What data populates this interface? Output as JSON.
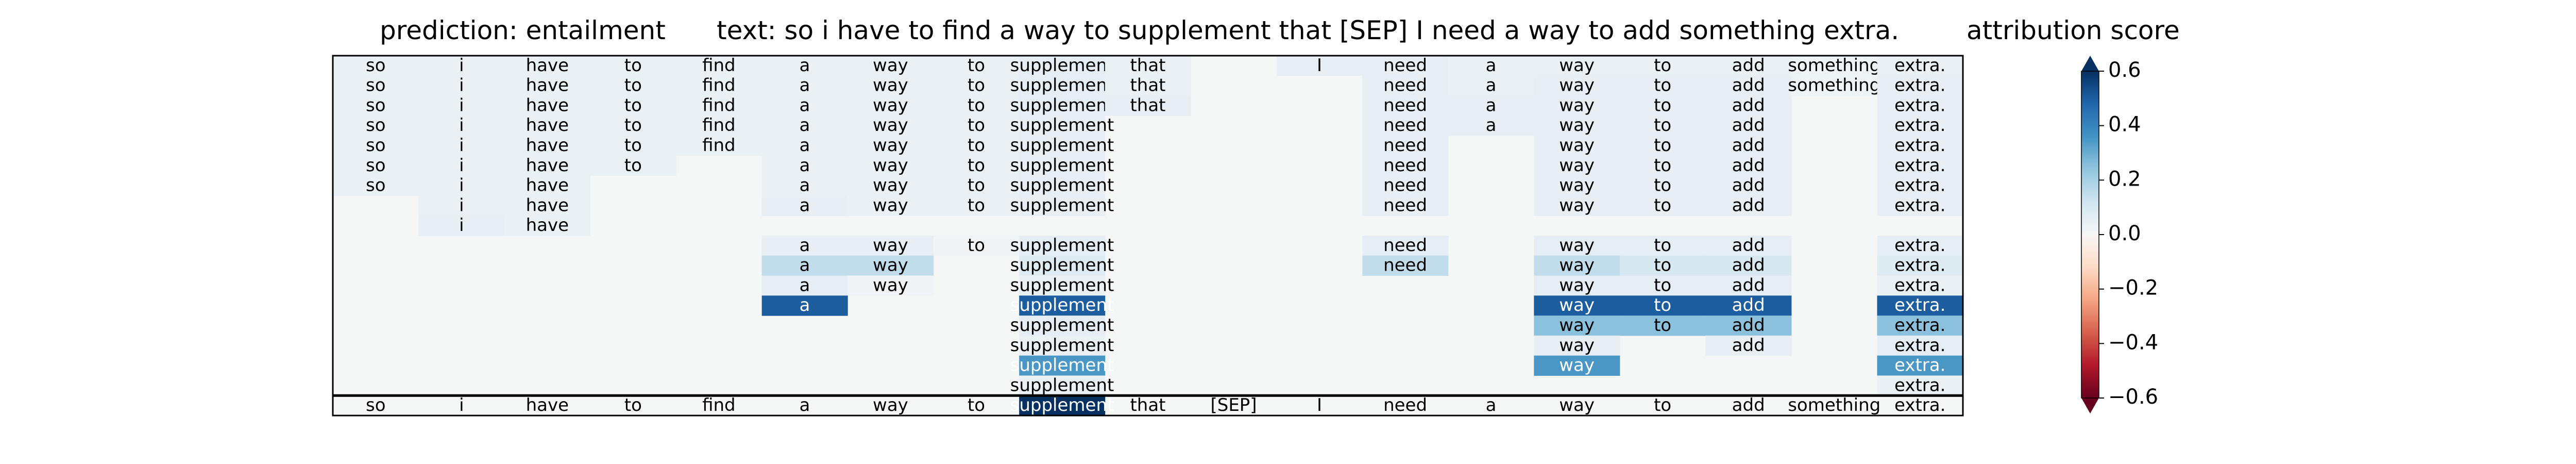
{
  "chart_data": {
    "type": "heatmap",
    "title_parts": [
      "prediction:  entailment",
      "text:  so i have to find a way to supplement that [SEP] I need a way to add something extra.",
      "attribution score"
    ],
    "tokens": [
      "so",
      "i",
      "have",
      "to",
      "find",
      "a",
      "way",
      "to",
      "supplement",
      "that",
      "[SEP]",
      "I",
      "need",
      "a",
      "way",
      "to",
      "add",
      "something",
      "extra."
    ],
    "rows": [
      {
        "words": [
          "so",
          "i",
          "have",
          "to",
          "find",
          "a",
          "way",
          "to",
          "supplement",
          "that",
          "",
          "I",
          "need",
          "a",
          "way",
          "to",
          "add",
          "something",
          "extra."
        ],
        "scores": [
          0.04,
          0.04,
          0.04,
          0.04,
          0.04,
          0.04,
          0.04,
          0.04,
          0.06,
          0.04,
          0,
          0.05,
          0.05,
          0.04,
          0.04,
          0.04,
          0.04,
          0.03,
          0.04
        ]
      },
      {
        "words": [
          "so",
          "i",
          "have",
          "to",
          "find",
          "a",
          "way",
          "to",
          "supplement",
          "that",
          "",
          "",
          "need",
          "a",
          "way",
          "to",
          "add",
          "something",
          "extra."
        ],
        "scores": [
          0.04,
          0.04,
          0.04,
          0.04,
          0.04,
          0.04,
          0.04,
          0.04,
          0.06,
          0.04,
          0,
          0,
          0.05,
          0.04,
          0.05,
          0.05,
          0.05,
          0.03,
          0.05
        ]
      },
      {
        "words": [
          "so",
          "i",
          "have",
          "to",
          "find",
          "a",
          "way",
          "to",
          "supplement",
          "that",
          "",
          "",
          "need",
          "a",
          "way",
          "to",
          "add",
          "",
          "extra."
        ],
        "scores": [
          0.04,
          0.04,
          0.04,
          0.04,
          0.04,
          0.04,
          0.04,
          0.04,
          0.06,
          0.05,
          0,
          0,
          0.05,
          0.05,
          0.05,
          0.05,
          0.05,
          0,
          0.05
        ]
      },
      {
        "words": [
          "so",
          "i",
          "have",
          "to",
          "find",
          "a",
          "way",
          "to",
          "supplement",
          "",
          "",
          "",
          "need",
          "a",
          "way",
          "to",
          "add",
          "",
          "extra."
        ],
        "scores": [
          0.04,
          0.04,
          0.04,
          0.04,
          0.04,
          0.04,
          0.04,
          0.04,
          0.05,
          0,
          0,
          0,
          0.05,
          0.05,
          0.05,
          0.05,
          0.05,
          0,
          0.05
        ]
      },
      {
        "words": [
          "so",
          "i",
          "have",
          "to",
          "find",
          "a",
          "way",
          "to",
          "supplement",
          "",
          "",
          "",
          "need",
          "",
          "way",
          "to",
          "add",
          "",
          "extra."
        ],
        "scores": [
          0.04,
          0.04,
          0.04,
          0.04,
          0.04,
          0.04,
          0.04,
          0.04,
          0.05,
          0,
          0,
          0,
          0.05,
          0,
          0.05,
          0.05,
          0.05,
          0,
          0.05
        ]
      },
      {
        "words": [
          "so",
          "i",
          "have",
          "to",
          "",
          "a",
          "way",
          "to",
          "supplement",
          "",
          "",
          "",
          "need",
          "",
          "way",
          "to",
          "add",
          "",
          "extra."
        ],
        "scores": [
          0.04,
          0.04,
          0.04,
          0.04,
          0,
          0.04,
          0.04,
          0.04,
          0.05,
          0,
          0,
          0,
          0.05,
          0,
          0.05,
          0.05,
          0.05,
          0,
          0.05
        ]
      },
      {
        "words": [
          "so",
          "i",
          "have",
          "",
          "",
          "a",
          "way",
          "to",
          "supplement",
          "",
          "",
          "",
          "need",
          "",
          "way",
          "to",
          "add",
          "",
          "extra."
        ],
        "scores": [
          0.04,
          0.04,
          0.04,
          0,
          0,
          0.04,
          0.04,
          0.04,
          0.05,
          0,
          0,
          0,
          0.05,
          0,
          0.05,
          0.05,
          0.05,
          0,
          0.05
        ]
      },
      {
        "words": [
          "",
          "i",
          "have",
          "",
          "",
          "a",
          "way",
          "to",
          "supplement",
          "",
          "",
          "",
          "need",
          "",
          "way",
          "to",
          "add",
          "",
          "extra."
        ],
        "scores": [
          0,
          0.04,
          0.04,
          0,
          0,
          0.05,
          0.04,
          0.04,
          0.05,
          0,
          0,
          0,
          0.05,
          0,
          0.05,
          0.05,
          0.05,
          0,
          0.05
        ]
      },
      {
        "words": [
          "",
          "i",
          "have",
          "",
          "",
          "",
          "",
          "",
          "",
          "",
          "",
          "",
          "",
          "",
          "",
          "",
          "",
          "",
          ""
        ],
        "scores": [
          0,
          0.05,
          0.04,
          0,
          0,
          0,
          0,
          0,
          0,
          0,
          0,
          0,
          0,
          0,
          0,
          0,
          0,
          0,
          0
        ]
      },
      {
        "words": [
          "",
          "",
          "",
          "",
          "",
          "a",
          "way",
          "to",
          "supplement",
          "",
          "",
          "",
          "need",
          "",
          "way",
          "to",
          "add",
          "",
          "extra."
        ],
        "scores": [
          0,
          0,
          0,
          0,
          0,
          0.05,
          0.05,
          0.02,
          0.06,
          0,
          0,
          0,
          0.06,
          0,
          0.06,
          0.06,
          0.06,
          0,
          0.06
        ]
      },
      {
        "words": [
          "",
          "",
          "",
          "",
          "",
          "a",
          "way",
          "",
          "supplement",
          "",
          "",
          "",
          "need",
          "",
          "way",
          "to",
          "add",
          "",
          "extra."
        ],
        "scores": [
          0,
          0,
          0,
          0,
          0,
          0.15,
          0.15,
          0,
          0.08,
          0,
          0,
          0,
          0.15,
          0,
          0.15,
          0.1,
          0.1,
          0,
          0.08
        ]
      },
      {
        "words": [
          "",
          "",
          "",
          "",
          "",
          "a",
          "way",
          "",
          "supplement",
          "",
          "",
          "",
          "",
          "",
          "way",
          "to",
          "add",
          "",
          "extra."
        ],
        "scores": [
          0,
          0,
          0,
          0,
          0,
          0.06,
          0.02,
          0,
          0.04,
          0,
          0,
          0,
          0,
          0,
          0.06,
          0.06,
          0.06,
          0,
          0.04
        ]
      },
      {
        "words": [
          "",
          "",
          "",
          "",
          "",
          "a",
          "",
          "",
          "supplement",
          "",
          "",
          "",
          "",
          "",
          "way",
          "to",
          "add",
          "",
          "extra."
        ],
        "scores": [
          0,
          0,
          0,
          0,
          0,
          0.5,
          0,
          0,
          0.5,
          0,
          0,
          0,
          0,
          0,
          0.5,
          0.5,
          0.5,
          0,
          0.5
        ]
      },
      {
        "words": [
          "",
          "",
          "",
          "",
          "",
          "",
          "",
          "",
          "supplement",
          "",
          "",
          "",
          "",
          "",
          "way",
          "to",
          "add",
          "",
          "extra."
        ],
        "scores": [
          0,
          0,
          0,
          0,
          0,
          0,
          0,
          0,
          0.06,
          0,
          0,
          0,
          0,
          0,
          0.25,
          0.25,
          0.25,
          0,
          0.25
        ]
      },
      {
        "words": [
          "",
          "",
          "",
          "",
          "",
          "",
          "",
          "",
          "supplement",
          "",
          "",
          "",
          "",
          "",
          "way",
          "",
          "add",
          "",
          "extra."
        ],
        "scores": [
          0,
          0,
          0,
          0,
          0,
          0,
          0,
          0,
          0.04,
          0,
          0,
          0,
          0,
          0,
          0.05,
          0,
          0.05,
          0,
          0.06
        ]
      },
      {
        "words": [
          "",
          "",
          "",
          "",
          "",
          "",
          "",
          "",
          "supplement",
          "",
          "",
          "",
          "",
          "",
          "way",
          "",
          "",
          "",
          "extra."
        ],
        "scores": [
          0,
          0,
          0,
          0,
          0,
          0,
          0,
          0,
          0.35,
          0,
          0,
          0,
          0,
          0,
          0.35,
          0,
          0,
          0,
          0.35
        ]
      },
      {
        "words": [
          "",
          "",
          "",
          "",
          "",
          "",
          "",
          "",
          "supplement",
          "",
          "",
          "",
          "",
          "",
          "",
          "",
          "",
          "",
          "extra."
        ],
        "scores": [
          0,
          0,
          0,
          0,
          0,
          0,
          0,
          0,
          0.04,
          0,
          0,
          0,
          0,
          0,
          0,
          0,
          0,
          0,
          0.04
        ]
      }
    ],
    "bottom_row": {
      "words": [
        "so",
        "i",
        "have",
        "to",
        "find",
        "a",
        "way",
        "to",
        "supplement",
        "that",
        "[SEP]",
        "I",
        "need",
        "a",
        "way",
        "to",
        "add",
        "something",
        "extra."
      ],
      "scores": [
        0,
        0,
        0,
        0,
        0,
        0,
        0,
        0,
        0.6,
        0,
        0,
        0,
        0,
        0,
        0,
        0,
        0,
        0,
        0
      ]
    },
    "colorbar": {
      "label": "attribution score",
      "ticks": [
        "0.6",
        "0.4",
        "0.2",
        "0.0",
        "−0.2",
        "−0.4",
        "−0.6"
      ],
      "tick_values": [
        0.6,
        0.4,
        0.2,
        0.0,
        -0.2,
        -0.4,
        -0.6
      ],
      "range": [
        -0.6,
        0.6
      ],
      "colormap": "RdBu"
    },
    "colors": {
      "background_cell": "#f5f6f6",
      "text_dark": "#000000",
      "text_light": "#ffffff"
    }
  }
}
